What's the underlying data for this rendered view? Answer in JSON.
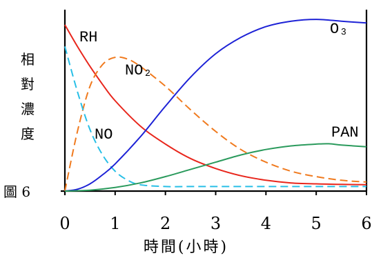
{
  "figure_label": "圖 6",
  "chart_data": {
    "type": "line",
    "xlabel": "時間(小時)",
    "ylabel": "相對濃度",
    "xlim": [
      0,
      6
    ],
    "x_ticks": [
      "0",
      "1",
      "2",
      "3",
      "4",
      "5",
      "6"
    ],
    "grid": false,
    "legend": "inline labels near curves",
    "series": [
      {
        "name": "RH",
        "color": "#e8261c",
        "dash": "solid",
        "x": [
          0,
          0.25,
          0.5,
          0.75,
          1,
          1.5,
          2,
          2.5,
          3,
          3.5,
          4,
          4.5,
          5,
          5.5,
          6
        ],
        "y": [
          0.92,
          0.8,
          0.69,
          0.59,
          0.5,
          0.36,
          0.26,
          0.18,
          0.125,
          0.085,
          0.06,
          0.045,
          0.04,
          0.037,
          0.035
        ]
      },
      {
        "name": "NO₂",
        "color": "#f07a1e",
        "dash": "dashed",
        "x": [
          0,
          0.25,
          0.5,
          0.75,
          1,
          1.25,
          1.5,
          2,
          2.5,
          3,
          3.5,
          4,
          4.5,
          5,
          5.5,
          6
        ],
        "y": [
          0.0,
          0.33,
          0.58,
          0.7,
          0.74,
          0.73,
          0.69,
          0.58,
          0.45,
          0.33,
          0.23,
          0.16,
          0.11,
          0.08,
          0.06,
          0.05
        ]
      },
      {
        "name": "NO",
        "color": "#27bfe6",
        "dash": "dashed",
        "x": [
          0,
          0.25,
          0.5,
          0.75,
          1,
          1.25,
          1.5,
          2,
          2.5,
          3,
          4,
          5,
          6
        ],
        "y": [
          0.8,
          0.55,
          0.34,
          0.2,
          0.11,
          0.06,
          0.035,
          0.025,
          0.025,
          0.025,
          0.025,
          0.025,
          0.025
        ]
      },
      {
        "name": "O₃",
        "color": "#1d22d6",
        "dash": "solid",
        "x": [
          0,
          0.25,
          0.5,
          0.75,
          1,
          1.5,
          2,
          2.5,
          3,
          3.5,
          4,
          4.5,
          5,
          5.5,
          6
        ],
        "y": [
          0.0,
          0.01,
          0.04,
          0.09,
          0.15,
          0.3,
          0.47,
          0.63,
          0.76,
          0.85,
          0.91,
          0.94,
          0.95,
          0.94,
          0.93
        ]
      },
      {
        "name": "PAN",
        "color": "#2a9a5c",
        "dash": "solid",
        "x": [
          0,
          0.5,
          1,
          1.5,
          2,
          2.5,
          3,
          3.5,
          4,
          4.5,
          5,
          5.25,
          5.5,
          6
        ],
        "y": [
          0.0,
          0.005,
          0.02,
          0.045,
          0.08,
          0.12,
          0.16,
          0.2,
          0.23,
          0.25,
          0.26,
          0.262,
          0.255,
          0.245
        ]
      }
    ]
  }
}
